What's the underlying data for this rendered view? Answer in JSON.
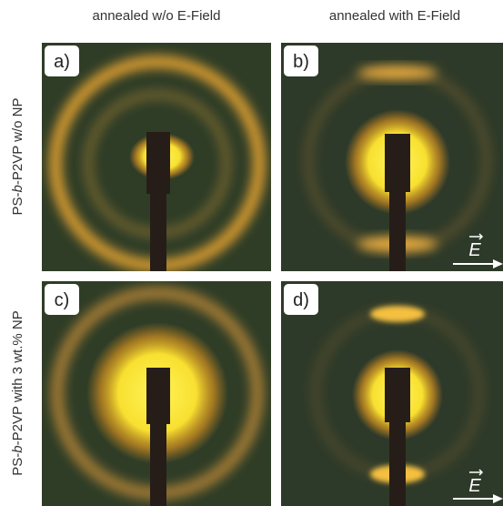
{
  "columns": [
    "annealed w/o E-Field",
    "annealed with E-Field"
  ],
  "rows": [
    {
      "prefix": "PS-",
      "italic": "b",
      "suffix": "-P2VP w/o NP"
    },
    {
      "prefix": "PS-",
      "italic": "b",
      "suffix": "-P2VP with 3 wt.% NP"
    }
  ],
  "panels": [
    {
      "label": "a)"
    },
    {
      "label": "b)",
      "field": "E"
    },
    {
      "label": "c)"
    },
    {
      "label": "d)",
      "field": "E"
    }
  ]
}
